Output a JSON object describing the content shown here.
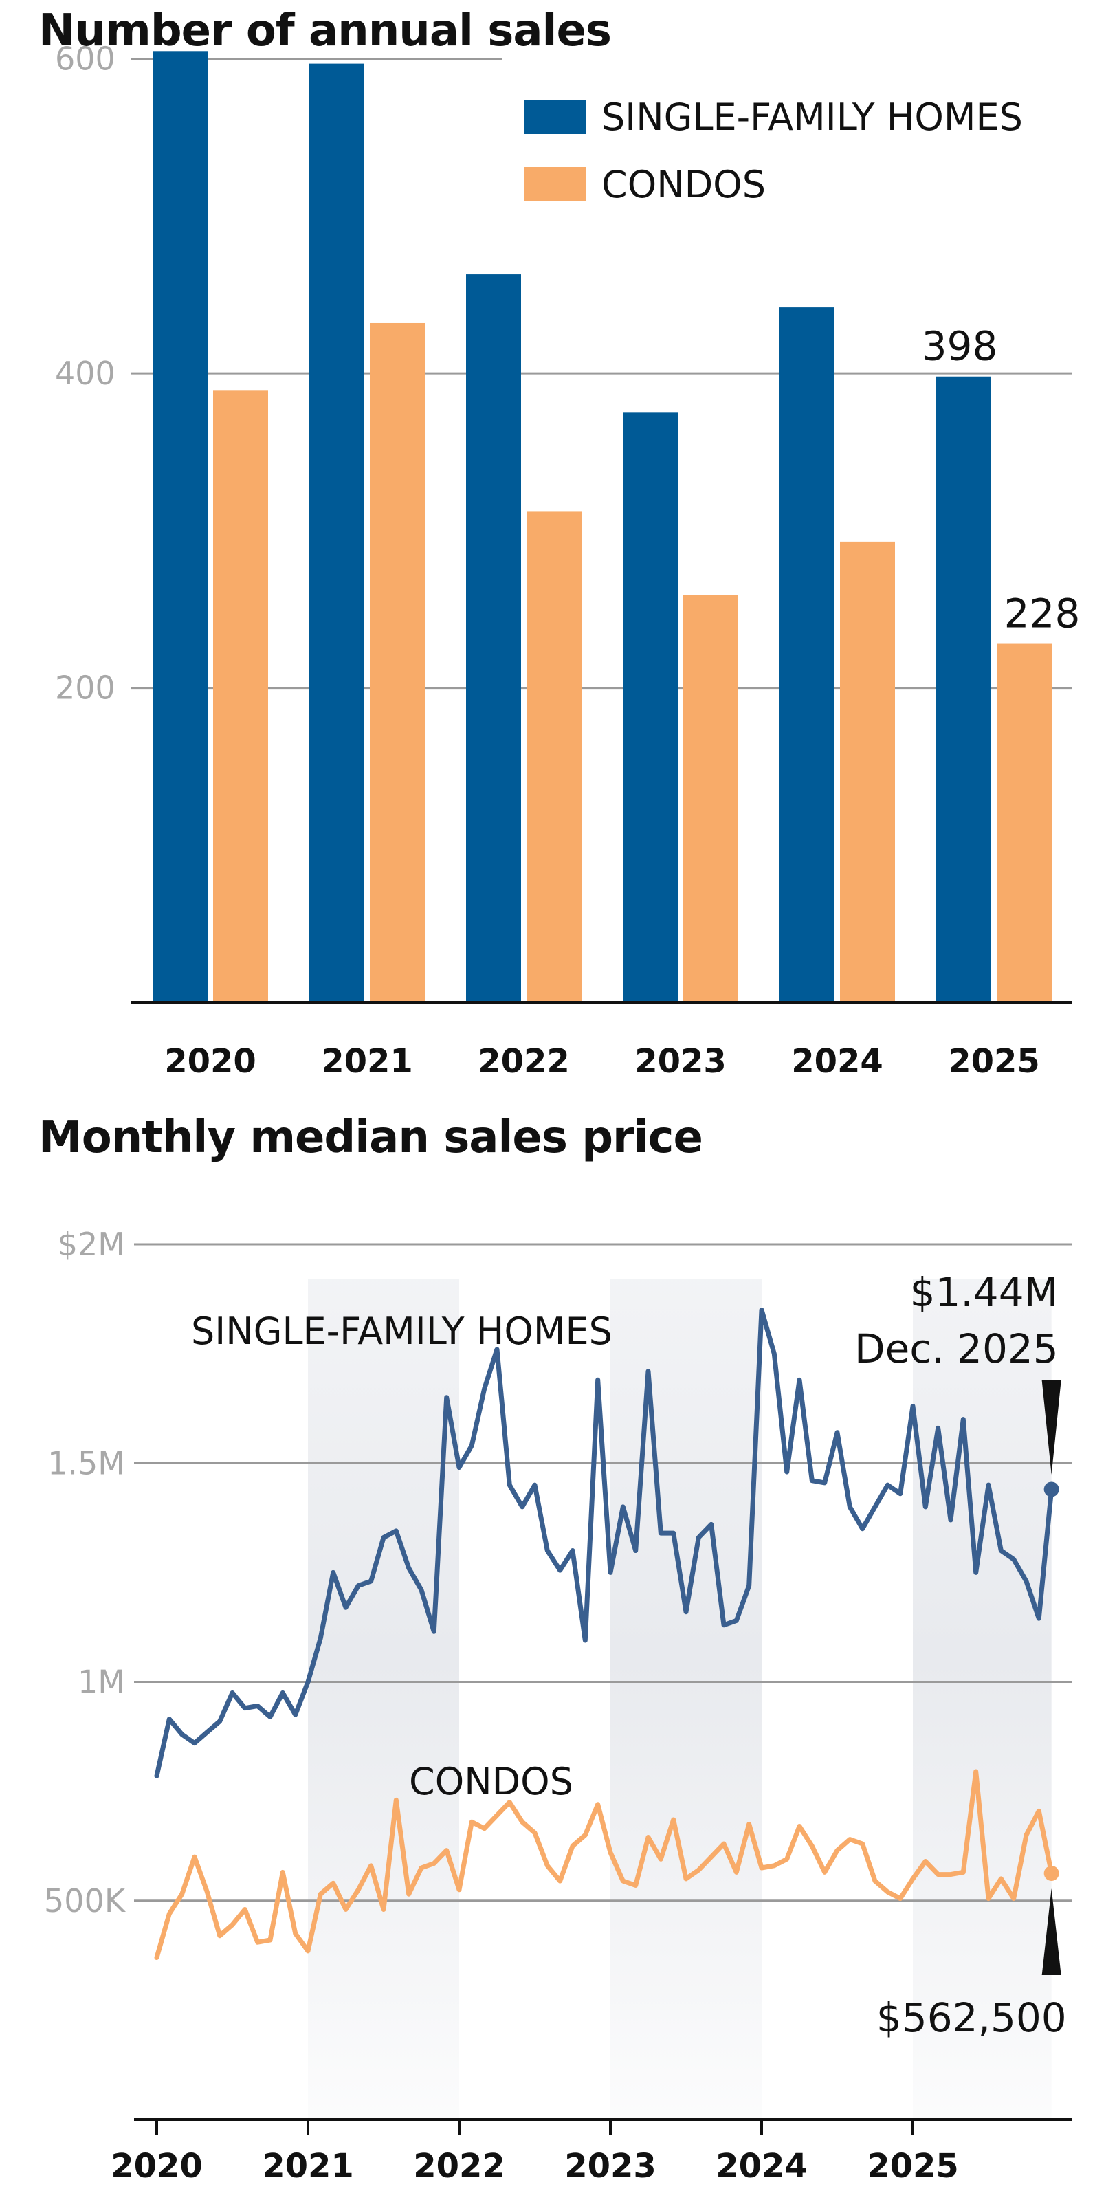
{
  "colors": {
    "single_family": "#005a96",
    "condos": "#f8ab69",
    "line_single_family": "#3a5f8f",
    "band": "#e8eaee"
  },
  "chart_data": [
    {
      "type": "bar",
      "title": "Number of annual sales",
      "categories": [
        "2020",
        "2021",
        "2022",
        "2023",
        "2024",
        "2025"
      ],
      "series": [
        {
          "name": "SINGLE-FAMILY HOMES",
          "values": [
            605,
            597,
            463,
            375,
            442,
            398
          ]
        },
        {
          "name": "CONDOS",
          "values": [
            389,
            432,
            312,
            259,
            293,
            228
          ]
        }
      ],
      "ylim": [
        0,
        620
      ],
      "yticks": [
        {
          "value": 200,
          "label": "200"
        },
        {
          "value": 400,
          "label": "400"
        },
        {
          "value": 600,
          "label": "600"
        }
      ],
      "grid": true,
      "legend_position": "top-right",
      "annotations": [
        {
          "series": 0,
          "category": "2025",
          "text": "398"
        },
        {
          "series": 1,
          "category": "2025",
          "text": "228"
        }
      ]
    },
    {
      "type": "line",
      "title": "Monthly median sales price",
      "x_start": "2020-01",
      "xticks": [
        "2020",
        "2021",
        "2022",
        "2023",
        "2024",
        "2025"
      ],
      "ylim": [
        0,
        2000000
      ],
      "yticks": [
        {
          "value": 500000,
          "label": "500K"
        },
        {
          "value": 1000000,
          "label": "1M"
        },
        {
          "value": 1500000,
          "label": "1.5M"
        },
        {
          "value": 2000000,
          "label": "$2M"
        }
      ],
      "grid": true,
      "shaded_years": [
        "2021",
        "2023",
        "2025"
      ],
      "series": [
        {
          "name": "SINGLE-FAMILY HOMES",
          "values": [
            785000,
            915000,
            880000,
            860000,
            885000,
            910000,
            975000,
            940000,
            945000,
            920000,
            975000,
            925000,
            1000000,
            1100000,
            1250000,
            1170000,
            1220000,
            1230000,
            1330000,
            1345000,
            1260000,
            1210000,
            1115000,
            1650000,
            1490000,
            1540000,
            1670000,
            1760000,
            1450000,
            1400000,
            1450000,
            1300000,
            1255000,
            1300000,
            1095000,
            1690000,
            1250000,
            1400000,
            1300000,
            1710000,
            1340000,
            1340000,
            1160000,
            1330000,
            1360000,
            1130000,
            1140000,
            1220000,
            1850000,
            1750000,
            1480000,
            1690000,
            1460000,
            1455000,
            1570000,
            1400000,
            1350000,
            1400000,
            1450000,
            1430000,
            1630000,
            1400000,
            1580000,
            1370000,
            1600000,
            1250000,
            1450000,
            1300000,
            1280000,
            1230000,
            1145000,
            1440000
          ]
        },
        {
          "name": "CONDOS",
          "values": [
            370000,
            470000,
            515000,
            600000,
            520000,
            420000,
            445000,
            480000,
            405000,
            410000,
            565000,
            425000,
            385000,
            515000,
            540000,
            480000,
            525000,
            580000,
            480000,
            730000,
            515000,
            575000,
            585000,
            615000,
            525000,
            680000,
            665000,
            695000,
            725000,
            680000,
            655000,
            580000,
            545000,
            625000,
            650000,
            720000,
            610000,
            545000,
            535000,
            645000,
            595000,
            685000,
            550000,
            570000,
            600000,
            630000,
            565000,
            675000,
            575000,
            580000,
            595000,
            670000,
            625000,
            565000,
            615000,
            640000,
            630000,
            545000,
            520000,
            505000,
            550000,
            590000,
            560000,
            560000,
            565000,
            795000,
            505000,
            550000,
            505000,
            650000,
            705000,
            562500
          ]
        }
      ],
      "annotations": [
        {
          "series": 0,
          "text": "$1.44M",
          "subtext": "Dec. 2025"
        },
        {
          "series": 1,
          "text": "$562,500"
        }
      ]
    }
  ]
}
